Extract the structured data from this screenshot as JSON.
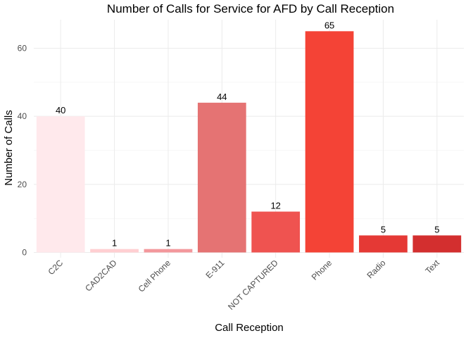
{
  "chart_data": {
    "type": "bar",
    "title": "Number of Calls for Service for AFD by Call Reception",
    "xlabel": "Call Reception",
    "ylabel": "Number of Calls",
    "categories": [
      "C2C",
      "CAD2CAD",
      "Cell Phone",
      "E-911",
      "NOT CAPTURED",
      "Phone",
      "Radio",
      "Text"
    ],
    "values": [
      40,
      1,
      1,
      44,
      12,
      65,
      5,
      5
    ],
    "colors": [
      "#ffe9ec",
      "#ffcfd2",
      "#f3989c",
      "#e57373",
      "#ef5350",
      "#f44336",
      "#e53935",
      "#d32f2f"
    ],
    "ylim": [
      0,
      68
    ],
    "yticks": [
      0,
      20,
      40,
      60
    ],
    "grid": true,
    "legend": "none",
    "data_labels": true
  }
}
